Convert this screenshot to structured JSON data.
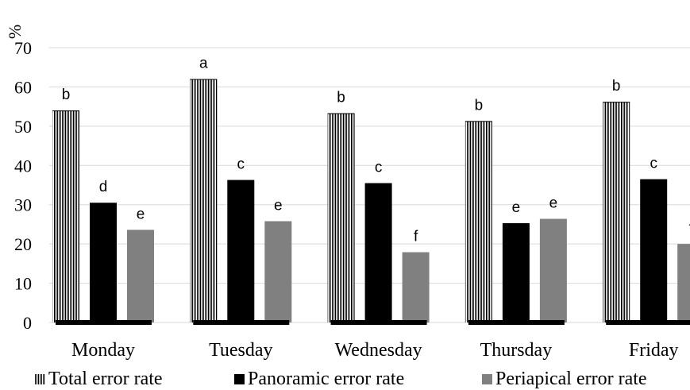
{
  "chart_data": {
    "type": "bar",
    "ylabel": "%",
    "ylim": [
      0,
      70
    ],
    "yticks": [
      0,
      10,
      20,
      30,
      40,
      50,
      60,
      70
    ],
    "grid": true,
    "legend_position": "bottom",
    "categories": [
      "Monday",
      "Tuesday",
      "Wednesday",
      "Thursday",
      "Friday"
    ],
    "series": [
      {
        "name": "Total error rate",
        "values": [
          54,
          62,
          53.3,
          51.3,
          56.2
        ],
        "labels": [
          "b",
          "a",
          "b",
          "b",
          "b"
        ],
        "fill": "vertical-stripes",
        "color": "#000000"
      },
      {
        "name": "Panoramic error rate",
        "values": [
          30.5,
          36.3,
          35.5,
          25.3,
          36.5
        ],
        "labels": [
          "d",
          "c",
          "c",
          "e",
          "c"
        ],
        "fill": "solid",
        "color": "#000000"
      },
      {
        "name": "Periapical error rate",
        "values": [
          23.6,
          25.8,
          17.9,
          26.4,
          20
        ],
        "labels": [
          "e",
          "e",
          "f",
          "e",
          "f"
        ],
        "fill": "solid",
        "color": "#808080"
      }
    ]
  }
}
